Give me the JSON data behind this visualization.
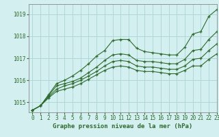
{
  "title": "Graphe pression niveau de la mer (hPa)",
  "background_color": "#d4efef",
  "grid_color": "#b0d8d8",
  "line_color": "#2d6a2d",
  "xlim": [
    -0.5,
    23
  ],
  "ylim": [
    1014.55,
    1019.45
  ],
  "yticks": [
    1015,
    1016,
    1017,
    1018,
    1019
  ],
  "xticks": [
    0,
    1,
    2,
    3,
    4,
    5,
    6,
    7,
    8,
    9,
    10,
    11,
    12,
    13,
    14,
    15,
    16,
    17,
    18,
    19,
    20,
    21,
    22,
    23
  ],
  "series": [
    [
      1014.65,
      1014.85,
      1015.3,
      1015.75,
      1015.85,
      1015.95,
      1016.1,
      1016.35,
      1016.6,
      1016.9,
      1017.15,
      1017.2,
      1017.15,
      1016.9,
      1016.85,
      1016.85,
      1016.8,
      1016.75,
      1016.75,
      1016.95,
      1017.35,
      1017.4,
      1017.85,
      1018.2
    ],
    [
      1014.65,
      1014.85,
      1015.25,
      1015.6,
      1015.75,
      1015.85,
      1016.0,
      1016.2,
      1016.4,
      1016.65,
      1016.85,
      1016.9,
      1016.85,
      1016.65,
      1016.6,
      1016.6,
      1016.55,
      1016.5,
      1016.5,
      1016.65,
      1016.95,
      1017.0,
      1017.35,
      1017.65
    ],
    [
      1014.65,
      1014.85,
      1015.2,
      1015.5,
      1015.6,
      1015.7,
      1015.85,
      1016.05,
      1016.25,
      1016.45,
      1016.6,
      1016.65,
      1016.6,
      1016.45,
      1016.4,
      1016.4,
      1016.35,
      1016.3,
      1016.3,
      1016.45,
      1016.65,
      1016.65,
      1016.95,
      1017.2
    ]
  ],
  "series_top": [
    1014.65,
    1014.85,
    1015.35,
    1015.85,
    1016.0,
    1016.2,
    1016.45,
    1016.75,
    1017.1,
    1017.35,
    1017.8,
    1017.85,
    1017.85,
    1017.45,
    1017.3,
    1017.25,
    1017.2,
    1017.15,
    1017.15,
    1017.5,
    1018.1,
    1018.2,
    1018.9,
    1019.2
  ]
}
